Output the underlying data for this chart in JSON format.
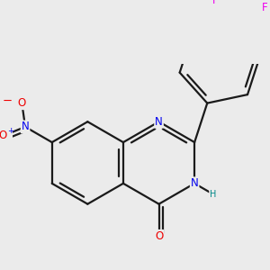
{
  "bg_color": "#ebebeb",
  "bond_color": "#1a1a1a",
  "bond_width": 1.6,
  "atom_colors": {
    "N": "#0000ee",
    "O": "#ee0000",
    "F": "#ee00ee",
    "C": "#1a1a1a",
    "H": "#008888"
  },
  "font_size": 8.5,
  "fig_size": [
    3.0,
    3.0
  ],
  "dpi": 100
}
